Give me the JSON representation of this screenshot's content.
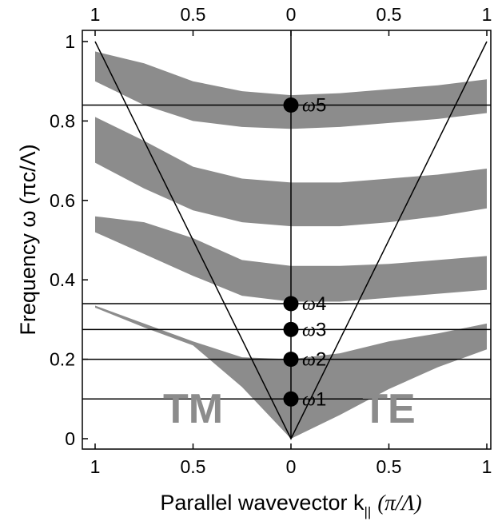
{
  "chart_data": {
    "type": "area",
    "xlabel": "Parallel wavevector k",
    "xlabel_sub": "||",
    "xlabel_units": "(π/Λ)",
    "ylabel": "Frequency ω (πc/Λ)",
    "ylim": [
      0,
      1
    ],
    "xlim": [
      -1,
      1
    ],
    "x_ticks": [
      {
        "pos": -1,
        "label": "1"
      },
      {
        "pos": -0.5,
        "label": "0.5"
      },
      {
        "pos": 0,
        "label": "0"
      },
      {
        "pos": 0.5,
        "label": "0.5"
      },
      {
        "pos": 1,
        "label": "1"
      }
    ],
    "y_ticks": [
      {
        "pos": 0,
        "label": "0"
      },
      {
        "pos": 0.2,
        "label": "0.2"
      },
      {
        "pos": 0.4,
        "label": "0.4"
      },
      {
        "pos": 0.6,
        "label": "0.6"
      },
      {
        "pos": 0.8,
        "label": "0.8"
      },
      {
        "pos": 1,
        "label": "1"
      }
    ],
    "band_color": "#8c8c8c",
    "bands": [
      {
        "x": [
          -1,
          -0.75,
          -0.5,
          -0.25,
          0,
          0.25,
          0.5,
          0.75,
          1
        ],
        "lower": [
          0.33,
          0.28,
          0.235,
          0.13,
          0,
          0.06,
          0.125,
          0.18,
          0.225
        ],
        "upper": [
          0.335,
          0.29,
          0.245,
          0.205,
          0.2,
          0.215,
          0.245,
          0.265,
          0.29
        ]
      },
      {
        "x": [
          -1,
          -0.75,
          -0.5,
          -0.25,
          0,
          0.25,
          0.5,
          0.75,
          1
        ],
        "lower": [
          0.52,
          0.465,
          0.41,
          0.36,
          0.345,
          0.345,
          0.355,
          0.365,
          0.375
        ],
        "upper": [
          0.56,
          0.545,
          0.505,
          0.45,
          0.435,
          0.435,
          0.44,
          0.45,
          0.46
        ]
      },
      {
        "x": [
          -1,
          -0.75,
          -0.5,
          -0.25,
          0,
          0.25,
          0.5,
          0.75,
          1
        ],
        "lower": [
          0.695,
          0.63,
          0.575,
          0.545,
          0.535,
          0.535,
          0.545,
          0.56,
          0.58
        ],
        "upper": [
          0.81,
          0.75,
          0.685,
          0.655,
          0.645,
          0.645,
          0.655,
          0.665,
          0.68
        ]
      },
      {
        "x": [
          -1,
          -0.75,
          -0.5,
          -0.25,
          0,
          0.25,
          0.5,
          0.75,
          1
        ],
        "lower": [
          0.9,
          0.84,
          0.8,
          0.785,
          0.78,
          0.785,
          0.795,
          0.805,
          0.82
        ],
        "upper": [
          0.975,
          0.945,
          0.9,
          0.875,
          0.865,
          0.87,
          0.88,
          0.89,
          0.905
        ]
      }
    ],
    "light_line": {
      "x": [
        -1,
        0,
        1
      ],
      "y": [
        1,
        0,
        1
      ]
    },
    "vertical_line_x": 0,
    "horizontal_lines": [
      0.1,
      0.2,
      0.275,
      0.34,
      0.84
    ],
    "points": [
      {
        "x": 0,
        "y": 0.1,
        "label": "ω",
        "sub": "1"
      },
      {
        "x": 0,
        "y": 0.2,
        "label": "ω",
        "sub": "2"
      },
      {
        "x": 0,
        "y": 0.275,
        "label": "ω",
        "sub": "3"
      },
      {
        "x": 0,
        "y": 0.34,
        "label": "ω",
        "sub": "4"
      },
      {
        "x": 0,
        "y": 0.84,
        "label": "ω",
        "sub": "5"
      }
    ],
    "regions": [
      {
        "label": "TM",
        "x": -0.5,
        "y": 0.04
      },
      {
        "label": "TE",
        "x": 0.5,
        "y": 0.04
      }
    ]
  }
}
